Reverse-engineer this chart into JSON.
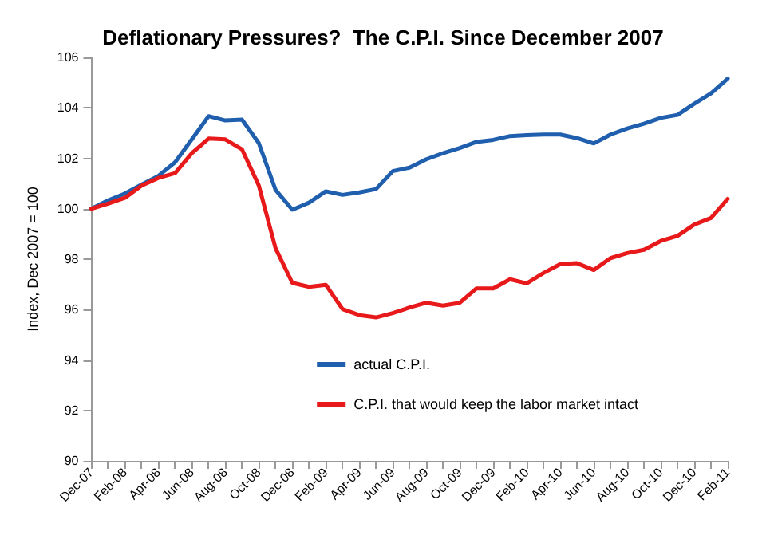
{
  "chart_data": {
    "type": "line",
    "title": "Deflationary Pressures?  The C.P.I. Since December 2007",
    "ylabel": "Index, Dec 2007 = 100",
    "categories": [
      "Dec-07",
      null,
      "Feb-08",
      null,
      "Apr-08",
      null,
      "Jun-08",
      null,
      "Aug-08",
      null,
      "Oct-08",
      null,
      "Dec-08",
      null,
      "Feb-09",
      null,
      "Apr-09",
      null,
      "Jun-09",
      null,
      "Aug-09",
      null,
      "Oct-09",
      null,
      "Dec-09",
      null,
      "Feb-10",
      null,
      "Apr-10",
      null,
      "Jun-10",
      null,
      "Aug-10",
      null,
      "Oct-10",
      null,
      "Dec-10",
      null,
      "Feb-11"
    ],
    "series": [
      {
        "name": "actual C.P.I.",
        "color": "#1f5fad",
        "values": [
          100.0,
          100.33,
          100.6,
          100.96,
          101.3,
          101.84,
          102.75,
          103.67,
          103.5,
          103.53,
          102.6,
          100.75,
          99.96,
          100.24,
          100.69,
          100.55,
          100.65,
          100.78,
          101.49,
          101.63,
          101.96,
          102.2,
          102.41,
          102.65,
          102.73,
          102.88,
          102.92,
          102.94,
          102.94,
          102.8,
          102.59,
          102.94,
          103.18,
          103.37,
          103.6,
          103.72,
          104.16,
          104.57,
          105.16
        ]
      },
      {
        "name": "C.P.I. that would keep the labor market intact",
        "color": "#e8191a",
        "values": [
          100.0,
          100.2,
          100.43,
          100.92,
          101.22,
          101.41,
          102.2,
          102.78,
          102.75,
          102.35,
          100.92,
          98.43,
          97.06,
          96.9,
          96.98,
          96.02,
          95.78,
          95.69,
          95.86,
          96.08,
          96.27,
          96.16,
          96.27,
          96.84,
          96.84,
          97.2,
          97.04,
          97.45,
          97.8,
          97.84,
          97.57,
          98.04,
          98.24,
          98.37,
          98.72,
          98.92,
          99.37,
          99.63,
          100.39
        ]
      }
    ],
    "ylim": [
      90,
      106
    ],
    "yticks": [
      90,
      92,
      94,
      96,
      98,
      100,
      102,
      104,
      106
    ],
    "grid": false,
    "legend": "bottom",
    "marker": "none",
    "line_style": "solid"
  }
}
